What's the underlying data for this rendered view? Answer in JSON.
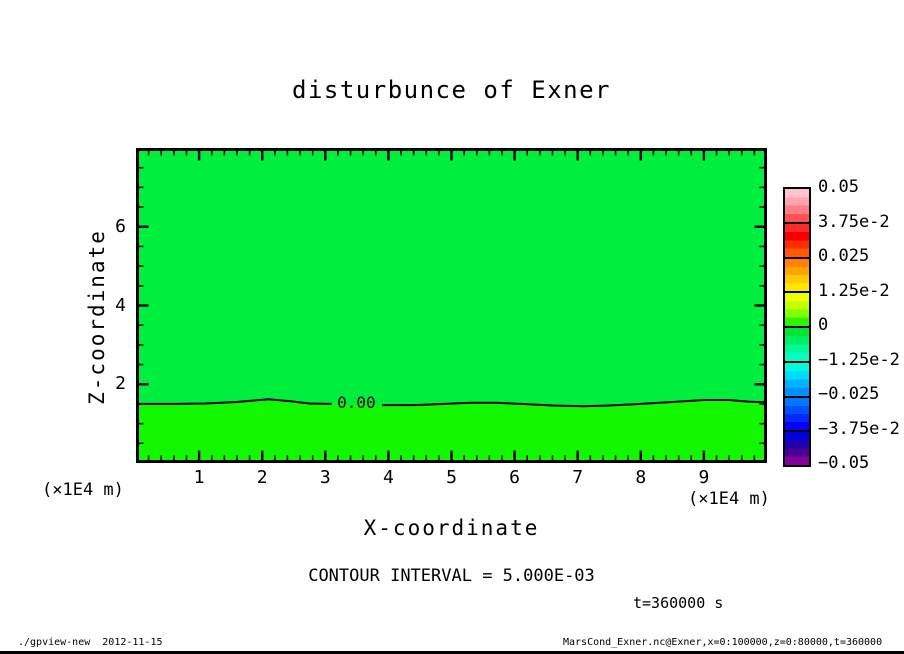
{
  "title": "disturbunce of Exner",
  "axes": {
    "x": {
      "label": "X-coordinate",
      "unit": "(×1E4 m)",
      "min": 0,
      "max": 10,
      "major_ticks": [
        1,
        2,
        3,
        4,
        5,
        6,
        7,
        8,
        9
      ],
      "minor_step": 0.2
    },
    "z": {
      "label": "Z-coordinate",
      "unit": "(×1E4 m)",
      "min": 0,
      "max": 8,
      "major_ticks": [
        2,
        4,
        6
      ],
      "minor_step": 0.5
    }
  },
  "contour": {
    "label": "0.00",
    "interval_text": "CONTOUR INTERVAL = 5.000E-03"
  },
  "time_label": "t=360000 s",
  "field": {
    "upper_color": "#00ef3e",
    "lower_color": "#13f700"
  },
  "colorbar": {
    "tick_labels": [
      "0.05",
      "3.75e-2",
      "0.025",
      "1.25e-2",
      "0",
      "−1.25e-2",
      "−0.025",
      "−3.75e-2",
      "−0.05"
    ],
    "segments": [
      [
        "#ffc3cd",
        "#ffa3ad",
        "#ff7d85",
        "#ff5055"
      ],
      [
        "#ff2828",
        "#f50000",
        "#ff2d00",
        "#ff5a00"
      ],
      [
        "#ff8200",
        "#ffa500",
        "#ffc800",
        "#ffe600"
      ],
      [
        "#f0ff00",
        "#c3ff00",
        "#82ff00",
        "#2df500"
      ],
      [
        "#00e632",
        "#00f064",
        "#00fa96",
        "#00ffc3"
      ],
      [
        "#00fade",
        "#00dcff",
        "#00b4ff",
        "#0091ff"
      ],
      [
        "#0078ff",
        "#0050ff",
        "#0028ff",
        "#0700fa"
      ],
      [
        "#0000dc",
        "#2300aa",
        "#4b0091",
        "#82009b"
      ]
    ]
  },
  "footer": {
    "left": "./gpview-new  2012-11-15",
    "right": "MarsCond_Exner.nc@Exner,x=0:100000,z=0:80000,t=360000"
  },
  "chart_data": {
    "type": "heatmap",
    "subtype": "filled-contour-with-zero-contour-line",
    "title": "disturbunce of Exner",
    "xlabel": "X-coordinate",
    "ylabel": "Z-coordinate",
    "x_unit_scale": "(×1E4 m)",
    "y_unit_scale": "(×1E4 m)",
    "xlim": [
      0,
      10
    ],
    "ylim": [
      0,
      8
    ],
    "x_ticks": [
      1,
      2,
      3,
      4,
      5,
      6,
      7,
      8,
      9
    ],
    "y_ticks": [
      2,
      4,
      6
    ],
    "x_minor_step": 0.2,
    "y_minor_step": 0.5,
    "contour_interval": 0.005,
    "contour_levels_shown": [
      0.0
    ],
    "colorbar_tick_values": [
      0.05,
      0.0375,
      0.025,
      0.0125,
      0,
      -0.0125,
      -0.025,
      -0.0375,
      -0.05
    ],
    "colorbar_range": [
      -0.05,
      0.05
    ],
    "legend_position": "right-colorbar",
    "grid": false,
    "time": "t=360000 s",
    "field_summary": "Exner disturbance is ~0 everywhere: slightly negative (green, 0 to -1.25e-2 band) above z≈1.5e4 m, slightly positive (green, 0 to 1.25e-2 band) below the 0.00 contour near the surface.",
    "zero_contour_segments": [
      [
        [
          0.0,
          1.5
        ],
        [
          0.6,
          1.5
        ],
        [
          1.1,
          1.51
        ],
        [
          1.6,
          1.55
        ],
        [
          2.1,
          1.62
        ],
        [
          2.45,
          1.57
        ],
        [
          2.75,
          1.51
        ],
        [
          3.1,
          1.5
        ]
      ],
      [
        [
          3.9,
          1.47
        ],
        [
          4.4,
          1.47
        ],
        [
          4.9,
          1.5
        ],
        [
          5.3,
          1.53
        ],
        [
          5.7,
          1.53
        ],
        [
          6.1,
          1.5
        ],
        [
          6.6,
          1.46
        ],
        [
          7.1,
          1.44
        ],
        [
          7.5,
          1.46
        ],
        [
          8.0,
          1.5
        ],
        [
          8.5,
          1.55
        ],
        [
          9.0,
          1.6
        ],
        [
          9.4,
          1.6
        ],
        [
          9.7,
          1.56
        ],
        [
          10.0,
          1.54
        ]
      ]
    ],
    "zero_contour_label_at": {
      "x": 3.52,
      "z": 1.52
    }
  }
}
